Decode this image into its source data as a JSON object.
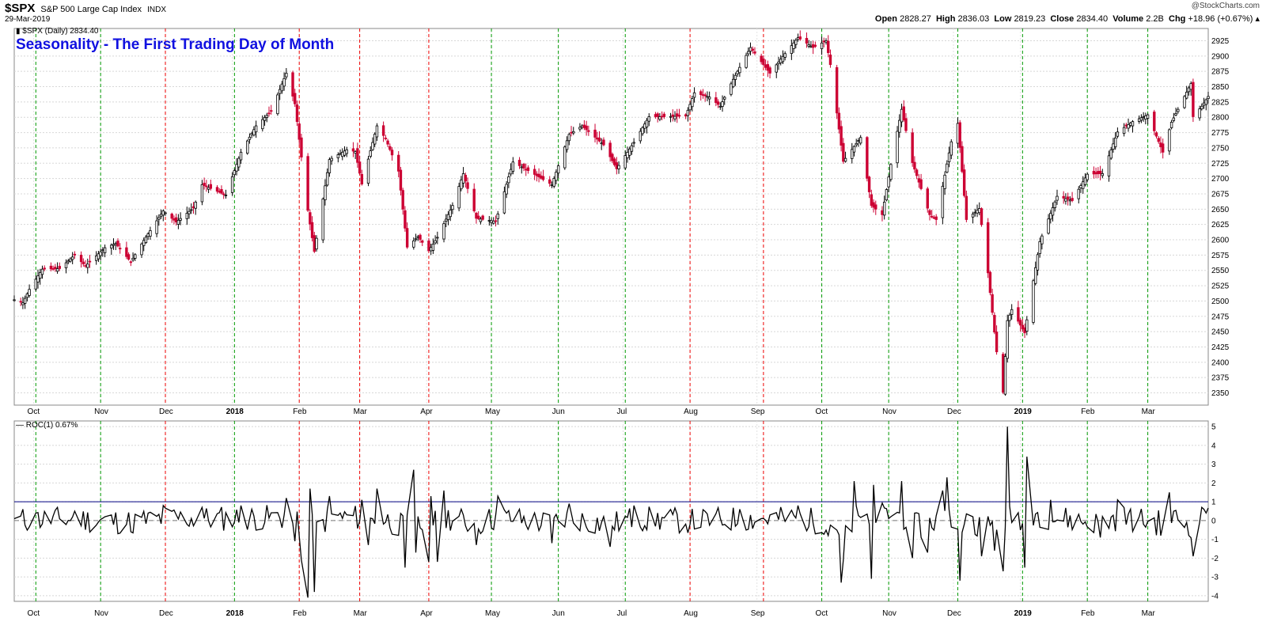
{
  "header": {
    "symbol": "$SPX",
    "description": "S&P 500 Large Cap Index",
    "exchange": "INDX",
    "date": "29-Mar-2019",
    "watermark": "@StockCharts.com",
    "open_label": "Open",
    "open": "2828.27",
    "high_label": "High",
    "high": "2836.03",
    "low_label": "Low",
    "low": "2819.23",
    "close_label": "Close",
    "close": "2834.40",
    "volume_label": "Volume",
    "volume": "2.2B",
    "chg_label": "Chg",
    "chg": "+18.96 (+0.67%)"
  },
  "colors": {
    "up": "#000000",
    "down": "#cc0033",
    "green_line": "#009900",
    "red_line": "#ee0000",
    "ref_line": "#000080",
    "title": "#1010e0"
  },
  "chart_data": [
    {
      "type": "candlestick",
      "title": "Seasonality - The First Trading Day of Month",
      "legend": "$SPX (Daily) 2834.40",
      "legend_placement": "top-left",
      "ylim": [
        2330,
        2945
      ],
      "y_ticks": [
        2350,
        2375,
        2400,
        2425,
        2450,
        2475,
        2500,
        2525,
        2550,
        2575,
        2600,
        2625,
        2650,
        2675,
        2700,
        2725,
        2750,
        2775,
        2800,
        2825,
        2850,
        2875,
        2900,
        2925
      ],
      "x_range": [
        "2017-09-22",
        "2019-03-29"
      ],
      "x_tick_labels": [
        {
          "date": "2017-10-01",
          "label": "Oct"
        },
        {
          "date": "2017-11-01",
          "label": "Nov"
        },
        {
          "date": "2017-12-01",
          "label": "Dec"
        },
        {
          "date": "2018-01-01",
          "label": "2018",
          "bold": true
        },
        {
          "date": "2018-02-01",
          "label": "Feb"
        },
        {
          "date": "2018-03-01",
          "label": "Mar"
        },
        {
          "date": "2018-04-01",
          "label": "Apr"
        },
        {
          "date": "2018-05-01",
          "label": "May"
        },
        {
          "date": "2018-06-01",
          "label": "Jun"
        },
        {
          "date": "2018-07-01",
          "label": "Jul"
        },
        {
          "date": "2018-08-01",
          "label": "Aug"
        },
        {
          "date": "2018-09-01",
          "label": "Sep"
        },
        {
          "date": "2018-10-01",
          "label": "Oct"
        },
        {
          "date": "2018-11-01",
          "label": "Nov"
        },
        {
          "date": "2018-12-01",
          "label": "Dec"
        },
        {
          "date": "2019-01-01",
          "label": "2019",
          "bold": true
        },
        {
          "date": "2019-02-01",
          "label": "Feb"
        },
        {
          "date": "2019-03-01",
          "label": "Mar"
        }
      ],
      "first_trading_days": [
        {
          "date": "2017-10-02",
          "color": "green"
        },
        {
          "date": "2017-11-01",
          "color": "green"
        },
        {
          "date": "2017-12-01",
          "color": "red"
        },
        {
          "date": "2018-01-02",
          "color": "green"
        },
        {
          "date": "2018-02-01",
          "color": "red"
        },
        {
          "date": "2018-03-01",
          "color": "red"
        },
        {
          "date": "2018-04-02",
          "color": "red"
        },
        {
          "date": "2018-05-01",
          "color": "green"
        },
        {
          "date": "2018-06-01",
          "color": "green"
        },
        {
          "date": "2018-07-02",
          "color": "green"
        },
        {
          "date": "2018-08-01",
          "color": "red"
        },
        {
          "date": "2018-09-04",
          "color": "red"
        },
        {
          "date": "2018-10-01",
          "color": "green"
        },
        {
          "date": "2018-11-01",
          "color": "green"
        },
        {
          "date": "2018-12-03",
          "color": "green"
        },
        {
          "date": "2019-01-02",
          "color": "green"
        },
        {
          "date": "2019-02-01",
          "color": "green"
        },
        {
          "date": "2019-03-01",
          "color": "green"
        }
      ],
      "close_path": [
        [
          "2017-09-22",
          2502
        ],
        [
          "2017-09-26",
          2497
        ],
        [
          "2017-09-29",
          2519
        ],
        [
          "2017-10-05",
          2552
        ],
        [
          "2017-10-13",
          2553
        ],
        [
          "2017-10-20",
          2575
        ],
        [
          "2017-10-25",
          2557
        ],
        [
          "2017-11-03",
          2587
        ],
        [
          "2017-11-08",
          2594
        ],
        [
          "2017-11-15",
          2564
        ],
        [
          "2017-11-21",
          2599
        ],
        [
          "2017-11-30",
          2647
        ],
        [
          "2017-12-06",
          2629
        ],
        [
          "2017-12-14",
          2652
        ],
        [
          "2017-12-18",
          2690
        ],
        [
          "2017-12-29",
          2673
        ],
        [
          "2018-01-05",
          2743
        ],
        [
          "2018-01-12",
          2786
        ],
        [
          "2018-01-19",
          2810
        ],
        [
          "2018-01-26",
          2872
        ],
        [
          "2018-01-30",
          2822
        ],
        [
          "2018-02-05",
          2648
        ],
        [
          "2018-02-08",
          2581
        ],
        [
          "2018-02-15",
          2731
        ],
        [
          "2018-02-23",
          2747
        ],
        [
          "2018-02-27",
          2744
        ],
        [
          "2018-03-02",
          2691
        ],
        [
          "2018-03-09",
          2786
        ],
        [
          "2018-03-13",
          2765
        ],
        [
          "2018-03-19",
          2712
        ],
        [
          "2018-03-23",
          2588
        ],
        [
          "2018-03-28",
          2605
        ],
        [
          "2018-04-02",
          2582
        ],
        [
          "2018-04-06",
          2604
        ],
        [
          "2018-04-13",
          2656
        ],
        [
          "2018-04-18",
          2708
        ],
        [
          "2018-04-24",
          2635
        ],
        [
          "2018-05-03",
          2630
        ],
        [
          "2018-05-11",
          2727
        ],
        [
          "2018-05-18",
          2713
        ],
        [
          "2018-05-29",
          2690
        ],
        [
          "2018-06-06",
          2772
        ],
        [
          "2018-06-12",
          2786
        ],
        [
          "2018-06-22",
          2755
        ],
        [
          "2018-06-28",
          2716
        ],
        [
          "2018-07-06",
          2759
        ],
        [
          "2018-07-13",
          2801
        ],
        [
          "2018-07-20",
          2801
        ],
        [
          "2018-07-30",
          2802
        ],
        [
          "2018-08-03",
          2840
        ],
        [
          "2018-08-10",
          2833
        ],
        [
          "2018-08-15",
          2818
        ],
        [
          "2018-08-21",
          2862
        ],
        [
          "2018-08-29",
          2914
        ],
        [
          "2018-09-07",
          2872
        ],
        [
          "2018-09-14",
          2904
        ],
        [
          "2018-09-20",
          2930
        ],
        [
          "2018-09-27",
          2914
        ],
        [
          "2018-10-03",
          2925
        ],
        [
          "2018-10-05",
          2886
        ],
        [
          "2018-10-11",
          2728
        ],
        [
          "2018-10-19",
          2767
        ],
        [
          "2018-10-24",
          2656
        ],
        [
          "2018-10-29",
          2641
        ],
        [
          "2018-11-02",
          2723
        ],
        [
          "2018-11-07",
          2813
        ],
        [
          "2018-11-12",
          2726
        ],
        [
          "2018-11-20",
          2641
        ],
        [
          "2018-11-23",
          2633
        ],
        [
          "2018-11-30",
          2760
        ],
        [
          "2018-12-03",
          2790
        ],
        [
          "2018-12-07",
          2633
        ],
        [
          "2018-12-13",
          2651
        ],
        [
          "2018-12-17",
          2546
        ],
        [
          "2018-12-21",
          2417
        ],
        [
          "2018-12-24",
          2351
        ],
        [
          "2018-12-26",
          2468
        ],
        [
          "2018-12-28",
          2486
        ],
        [
          "2019-01-03",
          2448
        ],
        [
          "2019-01-10",
          2597
        ],
        [
          "2019-01-18",
          2671
        ],
        [
          "2019-01-25",
          2664
        ],
        [
          "2019-02-01",
          2707
        ],
        [
          "2019-02-08",
          2708
        ],
        [
          "2019-02-15",
          2776
        ],
        [
          "2019-02-22",
          2793
        ],
        [
          "2019-03-01",
          2804
        ],
        [
          "2019-03-08",
          2743
        ],
        [
          "2019-03-12",
          2792
        ],
        [
          "2019-03-21",
          2855
        ],
        [
          "2019-03-22",
          2801
        ],
        [
          "2019-03-26",
          2818
        ],
        [
          "2019-03-29",
          2834
        ]
      ]
    },
    {
      "type": "line",
      "legend": "ROC(1) 0.67%",
      "legend_placement": "top-left",
      "ylim": [
        -4.3,
        5.3
      ],
      "y_ticks": [
        -4,
        -3,
        -2,
        -1,
        0,
        1,
        2,
        3,
        4,
        5
      ],
      "reference_lines": [
        1,
        0
      ],
      "x_range": [
        "2017-09-22",
        "2019-03-29"
      ],
      "series_points": [
        [
          "2017-09-22",
          0.1
        ],
        [
          "2017-10-02",
          0.4
        ],
        [
          "2017-10-20",
          0.5
        ],
        [
          "2017-11-15",
          -0.6
        ],
        [
          "2017-11-30",
          0.8
        ],
        [
          "2017-12-18",
          0.7
        ],
        [
          "2018-01-05",
          0.8
        ],
        [
          "2018-01-26",
          1.2
        ],
        [
          "2018-01-30",
          -1.1
        ],
        [
          "2018-02-02",
          -2.1
        ],
        [
          "2018-02-05",
          -4.1
        ],
        [
          "2018-02-06",
          1.7
        ],
        [
          "2018-02-08",
          -3.8
        ],
        [
          "2018-02-15",
          1.3
        ],
        [
          "2018-03-02",
          1.1
        ],
        [
          "2018-03-05",
          -1.3
        ],
        [
          "2018-03-09",
          1.7
        ],
        [
          "2018-03-22",
          -2.5
        ],
        [
          "2018-03-26",
          2.7
        ],
        [
          "2018-03-27",
          -1.7
        ],
        [
          "2018-04-02",
          -2.2
        ],
        [
          "2018-04-03",
          1.3
        ],
        [
          "2018-04-06",
          -2.2
        ],
        [
          "2018-04-09",
          1.6
        ],
        [
          "2018-04-24",
          -1.3
        ],
        [
          "2018-05-04",
          1.3
        ],
        [
          "2018-05-29",
          -1.2
        ],
        [
          "2018-06-06",
          0.9
        ],
        [
          "2018-06-25",
          -1.4
        ],
        [
          "2018-07-06",
          0.8
        ],
        [
          "2018-08-01",
          -0.2
        ],
        [
          "2018-08-24",
          0.6
        ],
        [
          "2018-09-20",
          0.8
        ],
        [
          "2018-10-04",
          -0.8
        ],
        [
          "2018-10-10",
          -3.3
        ],
        [
          "2018-10-11",
          -2.1
        ],
        [
          "2018-10-15",
          -0.6
        ],
        [
          "2018-10-16",
          2.1
        ],
        [
          "2018-10-24",
          -3.1
        ],
        [
          "2018-10-25",
          1.9
        ],
        [
          "2018-11-07",
          2.1
        ],
        [
          "2018-11-12",
          -2.0
        ],
        [
          "2018-11-19",
          -1.7
        ],
        [
          "2018-11-26",
          1.6
        ],
        [
          "2018-11-28",
          2.3
        ],
        [
          "2018-12-04",
          -3.2
        ],
        [
          "2018-12-06",
          -0.2
        ],
        [
          "2018-12-10",
          0.2
        ],
        [
          "2018-12-14",
          -1.9
        ],
        [
          "2018-12-20",
          -1.6
        ],
        [
          "2018-12-24",
          -2.7
        ],
        [
          "2018-12-26",
          5.0
        ],
        [
          "2018-12-28",
          -0.1
        ],
        [
          "2019-01-03",
          -2.5
        ],
        [
          "2019-01-04",
          3.4
        ],
        [
          "2019-01-15",
          1.1
        ],
        [
          "2019-02-07",
          -0.9
        ],
        [
          "2019-02-15",
          1.1
        ],
        [
          "2019-03-07",
          -0.8
        ],
        [
          "2019-03-11",
          1.5
        ],
        [
          "2019-03-22",
          -1.9
        ],
        [
          "2019-03-25",
          -0.1
        ],
        [
          "2019-03-26",
          0.7
        ],
        [
          "2019-03-28",
          0.4
        ],
        [
          "2019-03-29",
          0.67
        ]
      ]
    }
  ]
}
